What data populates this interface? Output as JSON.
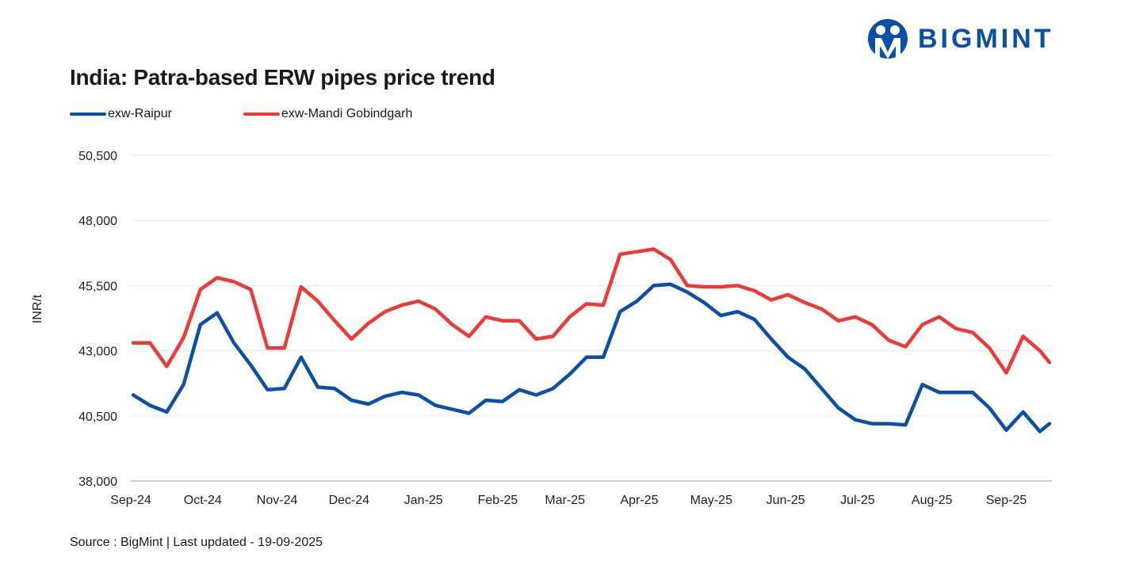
{
  "brand": {
    "name": "BIGMINT",
    "color": "#0a4fa8"
  },
  "footer": {
    "source": "Source : BigMint | Last updated - 19-09-2025"
  },
  "chart_data": {
    "type": "line",
    "title": "India: Patra-based ERW pipes price trend",
    "xlabel": "",
    "ylabel": "INR/t",
    "ylim": [
      38000,
      50500
    ],
    "y_ticks": [
      "38,000",
      "40,500",
      "43,000",
      "45,500",
      "48,000",
      "50,500"
    ],
    "x_ticks": [
      "Sep-24",
      "Oct-24",
      "Nov-24",
      "Dec-24",
      "Jan-25",
      "Feb-25",
      "Mar-25",
      "Apr-25",
      "May-25",
      "Jun-25",
      "Jul-25",
      "Aug-25",
      "Sep-25"
    ],
    "xlim": [
      "2024-09-01",
      "2025-09-19"
    ],
    "grid": "horizontal",
    "legend": "top-left",
    "x": [
      "2024-09-02",
      "2024-09-09",
      "2024-09-16",
      "2024-09-23",
      "2024-09-30",
      "2024-10-07",
      "2024-10-14",
      "2024-10-21",
      "2024-10-28",
      "2024-11-04",
      "2024-11-11",
      "2024-11-18",
      "2024-11-25",
      "2024-12-02",
      "2024-12-09",
      "2024-12-16",
      "2024-12-23",
      "2024-12-30",
      "2025-01-06",
      "2025-01-13",
      "2025-01-20",
      "2025-01-27",
      "2025-02-03",
      "2025-02-10",
      "2025-02-17",
      "2025-02-24",
      "2025-03-03",
      "2025-03-10",
      "2025-03-17",
      "2025-03-24",
      "2025-03-31",
      "2025-04-07",
      "2025-04-14",
      "2025-04-21",
      "2025-04-28",
      "2025-05-05",
      "2025-05-12",
      "2025-05-19",
      "2025-05-26",
      "2025-06-02",
      "2025-06-09",
      "2025-06-16",
      "2025-06-23",
      "2025-06-30",
      "2025-07-07",
      "2025-07-14",
      "2025-07-21",
      "2025-07-28",
      "2025-08-04",
      "2025-08-11",
      "2025-08-18",
      "2025-08-25",
      "2025-09-01",
      "2025-09-08",
      "2025-09-15",
      "2025-09-19"
    ],
    "series": [
      {
        "name": "exw-Raipur",
        "color": "#0a4fa8",
        "values": [
          41300,
          40900,
          40650,
          41700,
          44000,
          44450,
          43300,
          42450,
          41500,
          41550,
          42750,
          41600,
          41550,
          41100,
          40950,
          41250,
          41400,
          41300,
          40900,
          40750,
          40600,
          41100,
          41050,
          41500,
          41300,
          41550,
          42100,
          42750,
          42750,
          44500,
          44900,
          45500,
          45550,
          45250,
          44850,
          44350,
          44500,
          44200,
          43450,
          42750,
          42300,
          41550,
          40800,
          40350,
          40200,
          40200,
          40150,
          41700,
          41400,
          41400,
          41400,
          40800,
          39950,
          40650,
          39900,
          40200
        ]
      },
      {
        "name": "exw-Mandi Gobindgarh",
        "color": "#ee3a36",
        "values": [
          43300,
          43300,
          42400,
          43500,
          45350,
          45800,
          45650,
          45350,
          43100,
          43100,
          45450,
          44900,
          44150,
          43450,
          44050,
          44500,
          44750,
          44900,
          44600,
          44000,
          43550,
          44300,
          44150,
          44150,
          43450,
          43550,
          44300,
          44800,
          44750,
          46700,
          46800,
          46900,
          46500,
          45500,
          45450,
          45450,
          45500,
          45300,
          44950,
          45150,
          44850,
          44600,
          44150,
          44300,
          44000,
          43400,
          43150,
          44000,
          44300,
          43850,
          43700,
          43100,
          42150,
          43550,
          43000,
          42550
        ]
      }
    ]
  }
}
